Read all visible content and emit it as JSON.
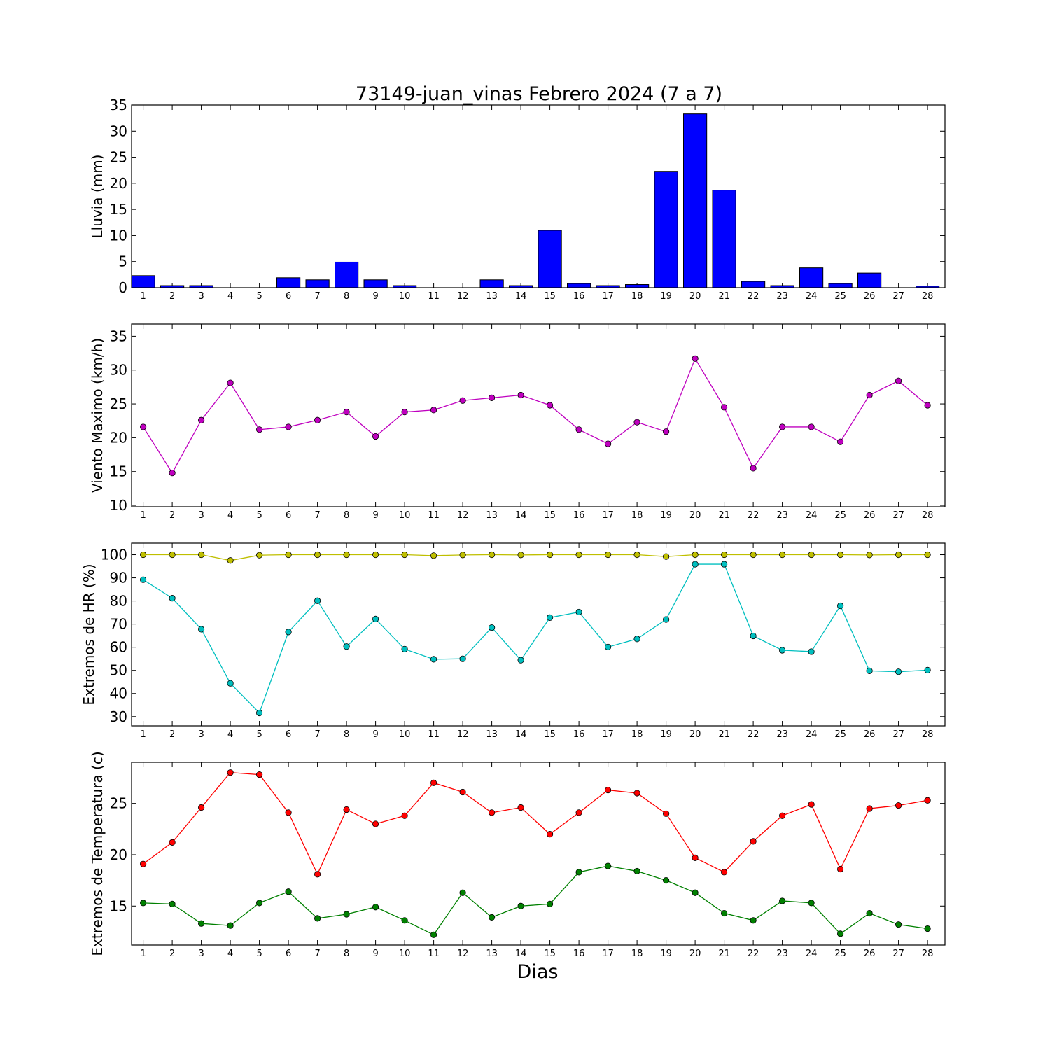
{
  "title": "73149-juan_vinas Febrero 2024  (7 a 7)",
  "xlabel": "Dias",
  "chart_data": [
    {
      "type": "bar",
      "ylabel": "Lluvia (mm)",
      "ylim": [
        0,
        35
      ],
      "yticks": [
        0,
        5,
        10,
        15,
        20,
        25,
        30,
        35
      ],
      "categories": [
        1,
        2,
        3,
        4,
        5,
        6,
        7,
        8,
        9,
        10,
        11,
        12,
        13,
        14,
        15,
        16,
        17,
        18,
        19,
        20,
        21,
        22,
        23,
        24,
        25,
        26,
        27,
        28
      ],
      "series": [
        {
          "color": "#0000ff",
          "values": [
            2.3,
            0.4,
            0.4,
            0.0,
            0.0,
            1.9,
            1.5,
            4.9,
            1.5,
            0.4,
            0.0,
            0.0,
            1.5,
            0.4,
            11.0,
            0.8,
            0.4,
            0.6,
            22.3,
            33.3,
            18.7,
            1.2,
            0.4,
            3.8,
            0.8,
            2.8,
            0.0,
            0.3
          ]
        }
      ]
    },
    {
      "type": "line",
      "ylabel": "Viento Maximo (km/h)",
      "ylim": [
        9.8,
        36.8
      ],
      "yticks": [
        10,
        15,
        20,
        25,
        30,
        35
      ],
      "x": [
        1,
        2,
        3,
        4,
        5,
        6,
        7,
        8,
        9,
        10,
        11,
        12,
        13,
        14,
        15,
        16,
        17,
        18,
        19,
        20,
        21,
        22,
        23,
        24,
        25,
        26,
        27,
        28
      ],
      "series": [
        {
          "color": "#bf00bf",
          "values": [
            21.6,
            14.8,
            22.6,
            28.1,
            21.2,
            21.6,
            22.6,
            23.8,
            20.2,
            23.8,
            24.1,
            25.5,
            25.9,
            26.3,
            24.8,
            21.2,
            19.1,
            22.3,
            20.9,
            31.7,
            24.5,
            15.5,
            21.6,
            21.6,
            19.4,
            26.3,
            28.4,
            24.8
          ]
        }
      ]
    },
    {
      "type": "line",
      "ylabel": "Extremos de HR (%)",
      "ylim": [
        26,
        105
      ],
      "yticks": [
        30,
        40,
        50,
        60,
        70,
        80,
        90,
        100
      ],
      "x": [
        1,
        2,
        3,
        4,
        5,
        6,
        7,
        8,
        9,
        10,
        11,
        12,
        13,
        14,
        15,
        16,
        17,
        18,
        19,
        20,
        21,
        22,
        23,
        24,
        25,
        26,
        27,
        28
      ],
      "series": [
        {
          "color": "#bfbf00",
          "values": [
            100,
            100,
            100,
            97.5,
            99.8,
            100,
            100,
            100,
            100,
            100,
            99.6,
            99.9,
            100,
            99.9,
            100,
            100,
            100,
            100,
            99.2,
            100,
            100,
            100,
            100,
            100,
            100,
            99.9,
            100,
            100
          ]
        },
        {
          "color": "#00bfbf",
          "values": [
            89.2,
            81.2,
            67.8,
            44.4,
            31.6,
            66.6,
            80.1,
            60.3,
            72.2,
            59.2,
            54.8,
            55.0,
            68.5,
            54.4,
            72.8,
            75.2,
            60.1,
            63.6,
            72.0,
            95.9,
            95.9,
            64.9,
            58.7,
            58.1,
            77.9,
            49.8,
            49.4,
            50.1
          ]
        }
      ]
    },
    {
      "type": "line",
      "ylabel": "Extremos de Temperatura (c)",
      "ylim": [
        11.2,
        29.0
      ],
      "yticks": [
        15,
        20,
        25
      ],
      "x": [
        1,
        2,
        3,
        4,
        5,
        6,
        7,
        8,
        9,
        10,
        11,
        12,
        13,
        14,
        15,
        16,
        17,
        18,
        19,
        20,
        21,
        22,
        23,
        24,
        25,
        26,
        27,
        28
      ],
      "series": [
        {
          "color": "#ff0000",
          "values": [
            19.1,
            21.2,
            24.6,
            28.0,
            27.8,
            24.1,
            18.1,
            24.4,
            23.0,
            23.8,
            27.0,
            26.1,
            24.1,
            24.6,
            22.0,
            24.1,
            26.3,
            26.0,
            24.0,
            19.7,
            18.3,
            21.3,
            23.8,
            24.9,
            18.6,
            24.5,
            24.8,
            25.3
          ]
        },
        {
          "color": "#008000",
          "values": [
            15.3,
            15.2,
            13.3,
            13.1,
            15.3,
            16.4,
            13.8,
            14.2,
            14.9,
            13.6,
            12.2,
            16.3,
            13.9,
            15.0,
            15.2,
            18.3,
            18.9,
            18.4,
            17.5,
            16.3,
            14.3,
            13.6,
            15.5,
            15.3,
            12.3,
            14.3,
            13.2,
            12.8
          ]
        }
      ]
    }
  ]
}
